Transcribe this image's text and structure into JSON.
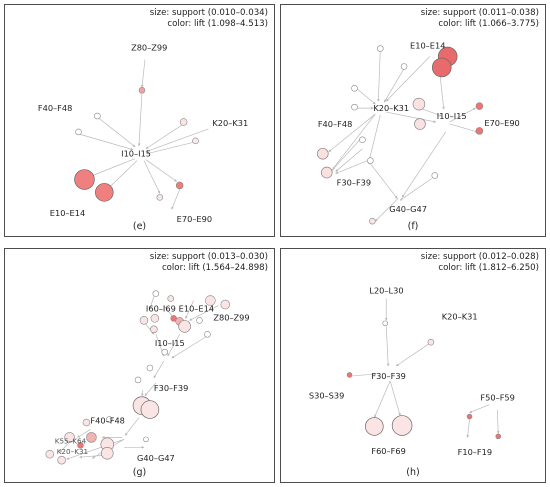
{
  "panels": {
    "e": {
      "tag": "(e)",
      "legend": {
        "size": "size: support (0.010–0.034)",
        "color": "color: lift (1.098–4.513)"
      },
      "labels": [
        "Z80–Z99",
        "F40–F48",
        "K20–K31",
        "I10–I15",
        "E10–E14",
        "E70–E90"
      ]
    },
    "f": {
      "tag": "(f)",
      "legend": {
        "size": "size: support (0.011–0.038)",
        "color": "color: lift (1.066–3.775)"
      },
      "labels": [
        "E10–E14",
        "K20–K31",
        "I10–I15",
        "E70–E90",
        "F40–F48",
        "F30–F39",
        "G40–G47"
      ]
    },
    "g": {
      "tag": "(g)",
      "legend": {
        "size": "size: support (0.013–0.030)",
        "color": "color: lift (1.564–24.898)"
      },
      "labels": [
        "I60–I69",
        "E10–E14",
        "Z80–Z99",
        "I10–I15",
        "F30–F39",
        "F40–F48",
        "K55–K64",
        "K20–K31",
        "G40–G47"
      ]
    },
    "h": {
      "tag": "(h)",
      "legend": {
        "size": "size: support (0.012–0.028)",
        "color": "color: lift (1.812–6.250)"
      },
      "labels": [
        "L20–L30",
        "K20–K31",
        "F30–F39",
        "S30–S39",
        "F50–F59",
        "F60–F69",
        "F10–F19"
      ]
    }
  }
}
